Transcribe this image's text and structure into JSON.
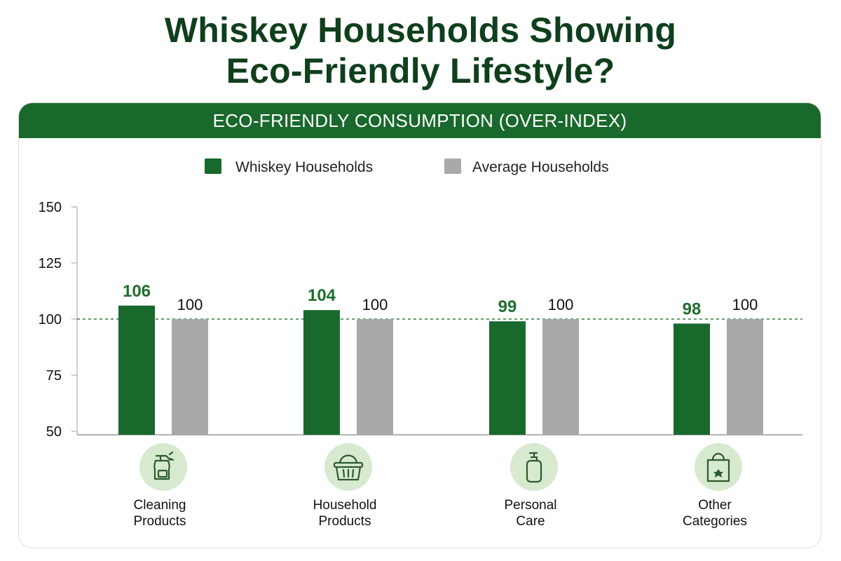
{
  "title": {
    "line1": "Whiskey Households Showing",
    "line2": "Eco-Friendly Lifestyle?"
  },
  "banner": "ECO-FRIENDLY CONSUMPTION (OVER-INDEX)",
  "colors": {
    "whiskey": "#19692c",
    "average": "#a9a9a9",
    "reference_line": "#2e7d3e",
    "icon_bg": "#d7ead0",
    "icon_stroke": "#2d5a2d"
  },
  "chart_data": {
    "type": "bar",
    "title": "ECO-FRIENDLY CONSUMPTION (OVER-INDEX)",
    "categories": [
      {
        "line1": "Cleaning",
        "line2": "Products",
        "icon": "spray-bottle-icon"
      },
      {
        "line1": "Household",
        "line2": "Products",
        "icon": "basket-icon"
      },
      {
        "line1": "Personal",
        "line2": "Care",
        "icon": "pump-bottle-icon"
      },
      {
        "line1": "Other",
        "line2": "Categories",
        "icon": "shopping-bag-icon"
      }
    ],
    "series": [
      {
        "name": "Whiskey Households",
        "values": [
          106,
          104,
          99,
          98
        ]
      },
      {
        "name": "Average Households",
        "values": [
          100,
          100,
          100,
          100
        ]
      }
    ],
    "yticks": [
      150,
      125,
      100,
      75,
      50
    ],
    "ylim": [
      50,
      150
    ],
    "reference_line": 100,
    "legend_position": "top-center",
    "grid": false
  }
}
